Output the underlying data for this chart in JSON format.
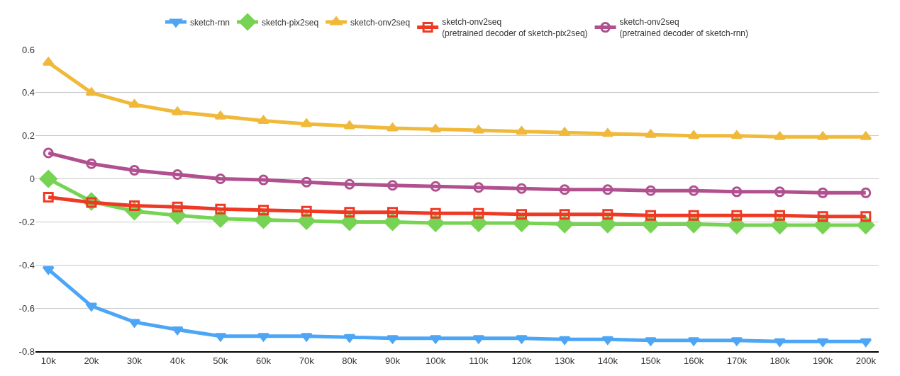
{
  "chart_data": {
    "type": "line",
    "categories": [
      "10k",
      "20k",
      "30k",
      "40k",
      "50k",
      "60k",
      "70k",
      "80k",
      "90k",
      "100k",
      "110k",
      "120k",
      "130k",
      "140k",
      "150k",
      "160k",
      "170k",
      "180k",
      "190k",
      "200k"
    ],
    "ylim": [
      -0.8,
      0.6
    ],
    "yticks": [
      -0.8,
      -0.6,
      -0.4,
      -0.2,
      0,
      0.2,
      0.4,
      0.6
    ],
    "grid": "y",
    "legend": "top",
    "line_style": "solid",
    "series": [
      {
        "name": "sketch-rnn",
        "color": "#4da6f5",
        "marker": "triangle-down",
        "values": [
          -0.42,
          -0.59,
          -0.665,
          -0.7,
          -0.73,
          -0.73,
          -0.73,
          -0.735,
          -0.74,
          -0.74,
          -0.74,
          -0.74,
          -0.745,
          -0.745,
          -0.75,
          -0.75,
          -0.75,
          -0.755,
          -0.755,
          -0.755
        ]
      },
      {
        "name": "sketch-pix2seq",
        "color": "#77d353",
        "marker": "diamond",
        "values": [
          0.0,
          -0.105,
          -0.15,
          -0.17,
          -0.185,
          -0.19,
          -0.195,
          -0.2,
          -0.2,
          -0.205,
          -0.205,
          -0.205,
          -0.21,
          -0.21,
          -0.21,
          -0.21,
          -0.215,
          -0.215,
          -0.215,
          -0.215
        ]
      },
      {
        "name": "sketch-onv2seq",
        "color": "#f0b93a",
        "marker": "triangle",
        "values": [
          0.54,
          0.4,
          0.345,
          0.31,
          0.29,
          0.27,
          0.255,
          0.245,
          0.235,
          0.23,
          0.225,
          0.22,
          0.215,
          0.21,
          0.205,
          0.2,
          0.2,
          0.195,
          0.195,
          0.195
        ]
      },
      {
        "name": "sketch-onv2seq\n(pretrained decoder of sketch-pix2seq)",
        "color": "#ee3a24",
        "marker": "square",
        "values": [
          -0.085,
          -0.11,
          -0.125,
          -0.13,
          -0.14,
          -0.145,
          -0.15,
          -0.155,
          -0.155,
          -0.16,
          -0.16,
          -0.165,
          -0.165,
          -0.165,
          -0.17,
          -0.17,
          -0.17,
          -0.17,
          -0.175,
          -0.175
        ]
      },
      {
        "name": "sketch-onv2seq\n(pretrained decoder of sketch-rnn)",
        "color": "#b0508f",
        "marker": "circle",
        "values": [
          0.12,
          0.07,
          0.04,
          0.02,
          0.0,
          -0.005,
          -0.015,
          -0.025,
          -0.03,
          -0.035,
          -0.04,
          -0.045,
          -0.05,
          -0.05,
          -0.055,
          -0.055,
          -0.06,
          -0.06,
          -0.065,
          -0.065
        ]
      }
    ]
  }
}
